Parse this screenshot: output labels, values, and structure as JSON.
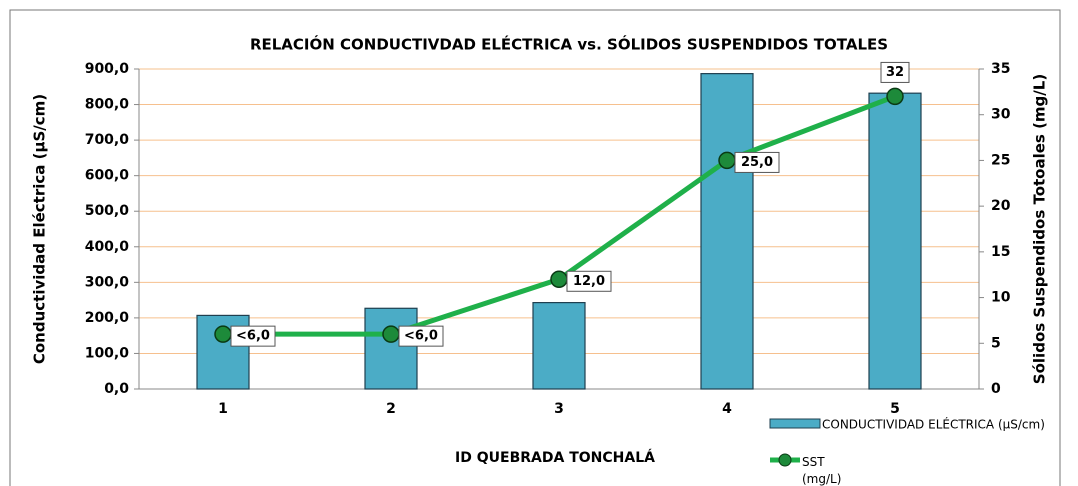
{
  "chart_data": {
    "type": "bar_line",
    "title": "RELACIÓN CONDUCTIVDAD ELÉCTRICA vs. SÓLIDOS SUSPENDIDOS TOTALES",
    "x_label": "ID QUEBRADA TONCHALÁ",
    "y_label": "Conductividad Eléctrica (µS/cm)",
    "y2_label": "Sólidos Suspendidos Totoales (mg/L)",
    "categories": [
      "1",
      "2",
      "3",
      "4",
      "5"
    ],
    "series": [
      {
        "name": "CONDUCTIVIDAD ELÉCTRICA (µS/cm)",
        "type": "bar",
        "color": "#4bacc6",
        "values": [
          207,
          227,
          243,
          887,
          832
        ]
      },
      {
        "name": "SST (mg/L)",
        "type": "line",
        "axis": "y2",
        "color": "#1fb04a",
        "values": [
          6,
          6,
          12,
          25,
          32
        ],
        "value_labels": [
          "<6,0",
          "<6,0",
          "12,0",
          "25,0",
          "32"
        ]
      }
    ],
    "ylim": [
      0,
      900
    ],
    "yticks": [
      {
        "value": 0,
        "label": "0,0"
      },
      {
        "value": 100,
        "label": "100,0"
      },
      {
        "value": 200,
        "label": "200,0"
      },
      {
        "value": 300,
        "label": "300,0"
      },
      {
        "value": 400,
        "label": "400,0"
      },
      {
        "value": 500,
        "label": "500,0"
      },
      {
        "value": 600,
        "label": "600,0"
      },
      {
        "value": 700,
        "label": "700,0"
      },
      {
        "value": 800,
        "label": "800,0"
      },
      {
        "value": 900,
        "label": "900,0"
      }
    ],
    "y2lim": [
      0,
      35
    ],
    "y2ticks": [
      0,
      5,
      10,
      15,
      20,
      25,
      30,
      35
    ],
    "grid": true
  }
}
